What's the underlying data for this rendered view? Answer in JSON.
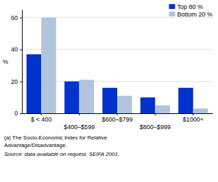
{
  "chart_data": {
    "type": "bar",
    "categories": [
      "$ < 400",
      "$400–$599",
      "$600–$799",
      "$800–$999",
      "$1000+"
    ],
    "series": [
      {
        "name": "Top 80 %",
        "color": "#0033cc",
        "values": [
          37,
          20,
          16,
          10,
          16
        ]
      },
      {
        "name": "Bottom 20 %",
        "color": "#b0c4de",
        "values": [
          60,
          21,
          11,
          5,
          3
        ]
      }
    ],
    "ylabel": "%",
    "ylim": [
      0,
      65
    ],
    "yticks": [
      0,
      20,
      40,
      60
    ],
    "grid": true,
    "legend": "upper right",
    "annotations": [
      "(a) The Socio-Economic Index for Relative",
      "Advantage/Disadvantage.",
      "Source: data available on request, SEIFA 2001."
    ]
  }
}
